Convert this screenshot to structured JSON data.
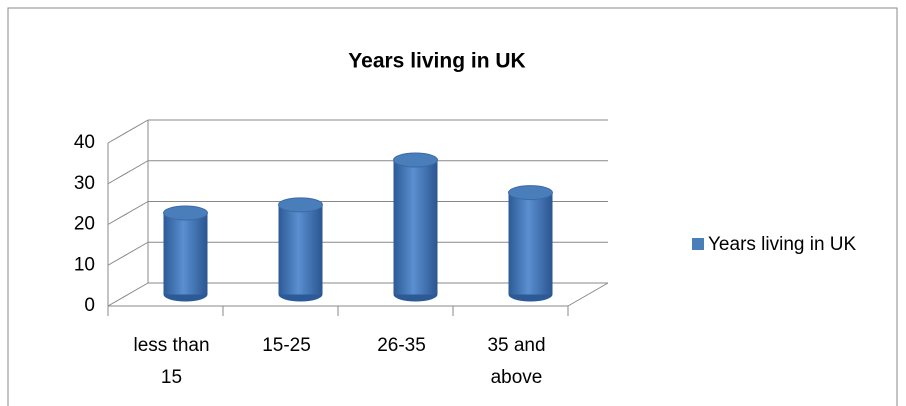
{
  "chart_data": {
    "type": "bar3d",
    "title": "Years living in UK",
    "categories": [
      "less than 15",
      "15-25",
      "26-35",
      "35 and above"
    ],
    "series": [
      {
        "name": "Years living in UK",
        "color": "#4a7ebb",
        "values": [
          20,
          22,
          33,
          25
        ]
      }
    ],
    "ylim": [
      0,
      40
    ],
    "yticks": [
      0,
      10,
      20,
      30,
      40
    ],
    "grid": true,
    "legend": "right"
  }
}
